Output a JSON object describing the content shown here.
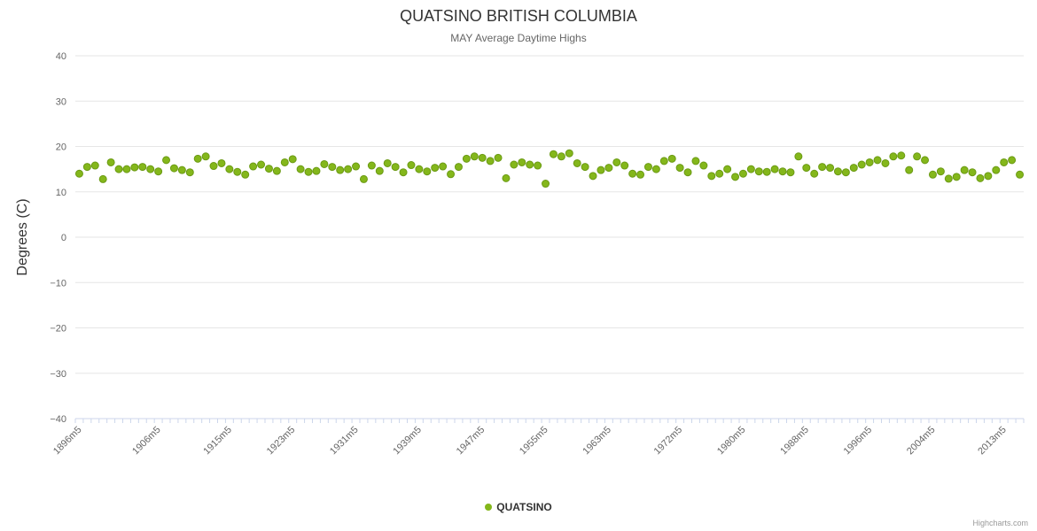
{
  "chart_data": {
    "type": "scatter",
    "title": "QUATSINO BRITISH COLUMBIA",
    "subtitle": "MAY Average Daytime Highs",
    "ylabel": "Degrees (C)",
    "ylim": [
      -40,
      40
    ],
    "yticks": [
      -40,
      -30,
      -20,
      -10,
      0,
      10,
      20,
      30,
      40
    ],
    "grid": true,
    "legend_position": "bottom",
    "point_color": "#84b71b",
    "point_stroke": "#6b9a14",
    "grid_color": "#e6e6e6",
    "axis_color": "#ccd6eb",
    "label_color": "#666666",
    "categories": [
      "1896m5",
      "1897m5",
      "1898m5",
      "1899m5",
      "1900m5",
      "1901m5",
      "1902m5",
      "1903m5",
      "1904m5",
      "1905m5",
      "1906m5",
      "1907m5",
      "1908m5",
      "1909m5",
      "1910m5",
      "1911m5",
      "1912m5",
      "1913m5",
      "1914m5",
      "1915m5",
      "1916m5",
      "1917m5",
      "1918m5",
      "1919m5",
      "1920m5",
      "1921m5",
      "1922m5",
      "1923m5",
      "1924m5",
      "1925m5",
      "1926m5",
      "1927m5",
      "1928m5",
      "1929m5",
      "1930m5",
      "1931m5",
      "1932m5",
      "1933m5",
      "1934m5",
      "1935m5",
      "1936m5",
      "1937m5",
      "1938m5",
      "1939m5",
      "1940m5",
      "1941m5",
      "1942m5",
      "1943m5",
      "1944m5",
      "1945m5",
      "1946m5",
      "1947m5",
      "1948m5",
      "1949m5",
      "1950m5",
      "1951m5",
      "1952m5",
      "1953m5",
      "1954m5",
      "1955m5",
      "1956m5",
      "1957m5",
      "1958m5",
      "1959m5",
      "1960m5",
      "1961m5",
      "1962m5",
      "1963m5",
      "1964m5",
      "1965m5",
      "1966m5",
      "1967m5",
      "1968m5",
      "1969m5",
      "1970m5",
      "1971m5",
      "1972m5",
      "1973m5",
      "1974m5",
      "1975m5",
      "1976m5",
      "1977m5",
      "1978m5",
      "1979m5",
      "1980m5",
      "1981m5",
      "1982m5",
      "1983m5",
      "1984m5",
      "1985m5",
      "1986m5",
      "1987m5",
      "1988m5",
      "1989m5",
      "1990m5",
      "1991m5",
      "1992m5",
      "1993m5",
      "1994m5",
      "1995m5",
      "1996m5",
      "1997m5",
      "1998m5",
      "1999m5",
      "2000m5",
      "2001m5",
      "2002m5",
      "2003m5",
      "2004m5",
      "2005m5",
      "2006m5",
      "2007m5",
      "2008m5",
      "2009m5",
      "2010m5",
      "2011m5",
      "2012m5",
      "2013m5",
      "2014m5",
      "2015m5"
    ],
    "xtick_labels": [
      "1896m5",
      "1906m5",
      "1915m5",
      "1923m5",
      "1931m5",
      "1939m5",
      "1947m5",
      "1955m5",
      "1963m5",
      "1972m5",
      "1980m5",
      "1988m5",
      "1996m5",
      "2004m5",
      "2013m5"
    ],
    "series": [
      {
        "name": "QUATSINO",
        "color": "#84b71b",
        "values": [
          14.0,
          15.5,
          15.8,
          12.8,
          16.5,
          15.0,
          15.0,
          15.4,
          15.5,
          15.0,
          14.5,
          17.0,
          15.2,
          14.8,
          14.3,
          17.3,
          17.8,
          15.7,
          16.3,
          15.0,
          14.4,
          13.8,
          15.6,
          16.0,
          15.1,
          14.6,
          16.5,
          17.2,
          15.0,
          14.4,
          14.6,
          16.1,
          15.5,
          14.8,
          15.0,
          15.6,
          12.8,
          15.8,
          14.6,
          16.3,
          15.5,
          14.3,
          15.9,
          15.0,
          14.5,
          15.3,
          15.6,
          13.9,
          15.5,
          17.3,
          17.8,
          17.5,
          16.8,
          17.5,
          13.0,
          16.0,
          16.5,
          16.0,
          15.8,
          11.8,
          18.3,
          17.8,
          18.5,
          16.3,
          15.5,
          13.5,
          14.8,
          15.3,
          16.5,
          15.8,
          14.0,
          13.8,
          15.5,
          15.0,
          16.8,
          17.3,
          15.3,
          14.3,
          16.8,
          15.8,
          13.5,
          14.0,
          15.0,
          13.3,
          14.0,
          15.0,
          14.5,
          14.4,
          15.0,
          14.5,
          14.3,
          17.8,
          15.3,
          14.0,
          15.5,
          15.3,
          14.5,
          14.3,
          15.3,
          16.0,
          16.5,
          17.0,
          16.3,
          17.8,
          18.0,
          14.8,
          17.8,
          17.0,
          13.8,
          14.5,
          12.9,
          13.3,
          14.8,
          14.3,
          13.0,
          13.5,
          14.8,
          16.5,
          17.0,
          13.8
        ]
      }
    ]
  },
  "credits": "Highcharts.com"
}
